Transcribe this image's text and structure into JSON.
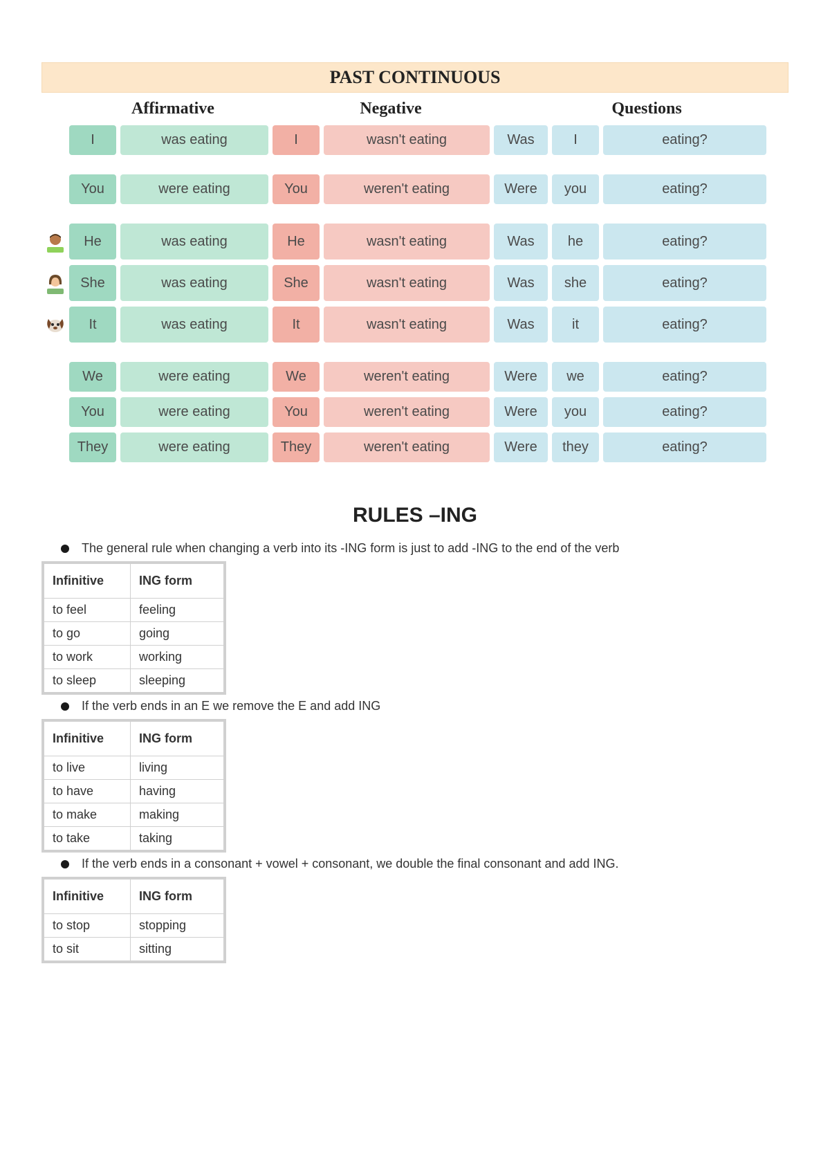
{
  "title": "PAST CONTINUOUS",
  "headers": {
    "affirmative": "Affirmative",
    "negative": "Negative",
    "questions": "Questions"
  },
  "colors": {
    "title_bg": "#fde7ca",
    "aff_light": "#bfe7d5",
    "aff_dark": "#9fd9c1",
    "neg_light": "#f6c9c2",
    "neg_dark": "#f2b0a5",
    "q": "#cbe7ef",
    "table_border": "#d0d0d0"
  },
  "rows": [
    {
      "icon": null,
      "p": "I",
      "aff": "was eating",
      "neg": "wasn't eating",
      "q_aux": "Was",
      "q_p": "I",
      "q_v": "eating?",
      "gapAfter": true
    },
    {
      "icon": null,
      "p": "You",
      "aff": "were eating",
      "neg": "weren't eating",
      "q_aux": "Were",
      "q_p": "you",
      "q_v": "eating?",
      "gapAfter": true
    },
    {
      "icon": "man",
      "p": "He",
      "aff": "was eating",
      "neg": "wasn't eating",
      "q_aux": "Was",
      "q_p": "he",
      "q_v": "eating?",
      "gapAfter": false
    },
    {
      "icon": "woman",
      "p": "She",
      "aff": "was eating",
      "neg": "wasn't eating",
      "q_aux": "Was",
      "q_p": "she",
      "q_v": "eating?",
      "gapAfter": false
    },
    {
      "icon": "dog",
      "p": "It",
      "aff": "was eating",
      "neg": "wasn't eating",
      "q_aux": "Was",
      "q_p": "it",
      "q_v": "eating?",
      "gapAfter": true
    },
    {
      "icon": null,
      "p": "We",
      "aff": "were eating",
      "neg": "weren't eating",
      "q_aux": "Were",
      "q_p": "we",
      "q_v": "eating?",
      "gapAfter": false
    },
    {
      "icon": null,
      "p": "You",
      "aff": "were eating",
      "neg": "weren't eating",
      "q_aux": "Were",
      "q_p": "you",
      "q_v": "eating?",
      "gapAfter": false
    },
    {
      "icon": null,
      "p": "They",
      "aff": "were eating",
      "neg": "weren't eating",
      "q_aux": "Were",
      "q_p": "they",
      "q_v": "eating?",
      "gapAfter": false
    }
  ],
  "rules_title": "RULES –ING",
  "bullets": [
    "The general rule when changing a verb into its -ING form is just to add -ING to the end of the verb",
    "If the verb ends in an E we remove the E and add ING",
    "If the verb ends in a consonant + vowel + consonant, we double the final consonant and add ING."
  ],
  "table_headers": {
    "c1": "Infinitive",
    "c2": "ING form"
  },
  "tables": [
    {
      "rows": [
        [
          "to feel",
          "feeling"
        ],
        [
          "to go",
          "going"
        ],
        [
          "to work",
          "working"
        ],
        [
          "to sleep",
          "sleeping"
        ]
      ]
    },
    {
      "rows": [
        [
          "to live",
          "living"
        ],
        [
          "to have",
          "having"
        ],
        [
          "to make",
          "making"
        ],
        [
          "to take",
          "taking"
        ]
      ]
    },
    {
      "rows": [
        [
          "to stop",
          "stopping"
        ],
        [
          "to sit",
          "sitting"
        ]
      ]
    }
  ]
}
